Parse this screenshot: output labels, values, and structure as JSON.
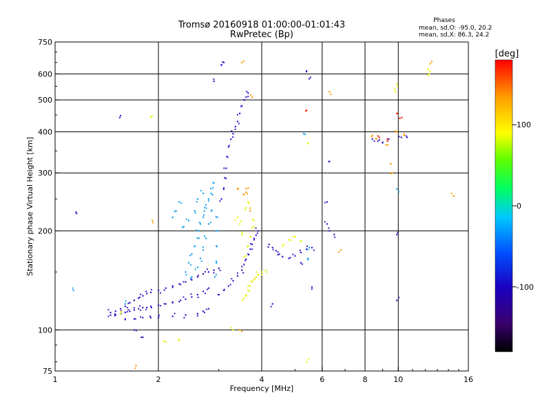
{
  "chart_data": {
    "type": "scatter",
    "title": "Tromsø 20160918 01:00:00-01:01:43",
    "subtitle": "RwPretec (Bp)",
    "xlabel": "Frequency [MHz]",
    "ylabel": "Stationary phase Virtual Height [km]",
    "x_scale": "log",
    "y_scale": "log",
    "xlim": [
      1,
      16
    ],
    "ylim": [
      75,
      750
    ],
    "x_ticks": [
      1,
      2,
      4,
      6,
      8,
      10,
      16
    ],
    "y_ticks": [
      75,
      100,
      200,
      300,
      400,
      500,
      600,
      750
    ],
    "grid": true,
    "stats": {
      "heading": "Phases",
      "line1": "mean, sd,O: -95.0, 20.2",
      "line2": "mean, sd,X:  86.3, 24.2"
    },
    "colorbar": {
      "label": "[deg]",
      "range": [
        -180,
        180
      ],
      "ticks": [
        {
          "value": 100,
          "label": "100"
        },
        {
          "value": 0,
          "label": "0"
        },
        {
          "value": -100,
          "label": "-100"
        }
      ]
    },
    "series": [
      {
        "points": [
          [
            1.45,
            113
          ],
          [
            1.5,
            114
          ],
          [
            1.55,
            116
          ],
          [
            1.6,
            118
          ],
          [
            1.65,
            121
          ],
          [
            1.7,
            123
          ],
          [
            1.75,
            125
          ],
          [
            1.8,
            127
          ],
          [
            1.85,
            129
          ],
          [
            1.9,
            130
          ],
          [
            2.0,
            132
          ],
          [
            2.1,
            134
          ],
          [
            2.2,
            136
          ],
          [
            2.3,
            138
          ],
          [
            2.4,
            140
          ],
          [
            2.5,
            142
          ],
          [
            2.6,
            145
          ],
          [
            2.7,
            148
          ],
          [
            2.8,
            150
          ],
          [
            2.9,
            152
          ],
          [
            3.0,
            154
          ],
          [
            1.45,
            111
          ],
          [
            1.5,
            111
          ],
          [
            1.55,
            112
          ],
          [
            1.6,
            113
          ],
          [
            1.65,
            114
          ],
          [
            1.7,
            115
          ],
          [
            1.75,
            116
          ],
          [
            1.8,
            117
          ],
          [
            1.85,
            117
          ],
          [
            1.9,
            118
          ],
          [
            2.0,
            119
          ],
          [
            2.1,
            120
          ],
          [
            2.2,
            121
          ],
          [
            2.3,
            122
          ],
          [
            2.4,
            124
          ],
          [
            2.5,
            126
          ],
          [
            2.6,
            128
          ],
          [
            2.7,
            131
          ],
          [
            2.8,
            134
          ],
          [
            1.6,
            108
          ],
          [
            1.7,
            108
          ],
          [
            1.8,
            109
          ],
          [
            1.9,
            109
          ],
          [
            2.0,
            109
          ],
          [
            2.2,
            110
          ],
          [
            2.4,
            111
          ],
          [
            2.6,
            112
          ],
          [
            2.7,
            114
          ],
          [
            2.8,
            116
          ],
          [
            3.0,
            128
          ],
          [
            3.1,
            132
          ],
          [
            3.2,
            136
          ],
          [
            3.3,
            141
          ],
          [
            3.4,
            146
          ],
          [
            3.5,
            152
          ],
          [
            3.55,
            158
          ],
          [
            3.6,
            164
          ],
          [
            3.65,
            170
          ],
          [
            3.7,
            176
          ],
          [
            3.75,
            182
          ],
          [
            3.8,
            188
          ],
          [
            3.85,
            194
          ],
          [
            3.9,
            200
          ],
          [
            4.2,
            182
          ],
          [
            4.3,
            178
          ],
          [
            4.4,
            174
          ],
          [
            4.5,
            170
          ],
          [
            4.6,
            167
          ],
          [
            4.8,
            165
          ],
          [
            5.0,
            168
          ],
          [
            5.2,
            172
          ],
          [
            5.4,
            176
          ],
          [
            5.6,
            178
          ],
          [
            3.05,
            250
          ],
          [
            3.1,
            270
          ],
          [
            3.12,
            290
          ],
          [
            3.15,
            310
          ],
          [
            3.18,
            335
          ],
          [
            3.2,
            360
          ],
          [
            3.25,
            380
          ],
          [
            3.3,
            395
          ],
          [
            3.35,
            415
          ],
          [
            3.4,
            430
          ],
          [
            3.45,
            455
          ],
          [
            3.5,
            480
          ],
          [
            3.55,
            500
          ],
          [
            3.6,
            510
          ],
          [
            3.65,
            525
          ],
          [
            2.9,
            570
          ],
          [
            3.05,
            640
          ],
          [
            3.1,
            650
          ],
          [
            1.55,
            448
          ],
          [
            1.15,
            228
          ],
          [
            1.7,
            100
          ],
          [
            1.8,
            95
          ],
          [
            5.4,
            610
          ],
          [
            5.5,
            580
          ],
          [
            6.2,
            210
          ],
          [
            6.3,
            200
          ],
          [
            6.5,
            195
          ],
          [
            8.4,
            380
          ],
          [
            8.8,
            378
          ],
          [
            9.0,
            372
          ],
          [
            9.3,
            380
          ],
          [
            10.2,
            385
          ],
          [
            10.6,
            385
          ],
          [
            9.9,
            195
          ],
          [
            9.9,
            123
          ],
          [
            4.3,
            120
          ],
          [
            5.6,
            135
          ],
          [
            5.2,
            160
          ],
          [
            6.2,
            245
          ],
          [
            6.3,
            325
          ]
        ]
      },
      {
        "points": [
          [
            2.4,
            150
          ],
          [
            2.45,
            160
          ],
          [
            2.5,
            170
          ],
          [
            2.55,
            180
          ],
          [
            2.6,
            190
          ],
          [
            2.62,
            200
          ],
          [
            2.65,
            210
          ],
          [
            2.7,
            220
          ],
          [
            2.72,
            230
          ],
          [
            2.75,
            240
          ],
          [
            2.8,
            250
          ],
          [
            2.85,
            260
          ],
          [
            2.88,
            270
          ],
          [
            2.9,
            280
          ],
          [
            2.85,
            230
          ],
          [
            2.8,
            210
          ],
          [
            2.75,
            190
          ],
          [
            2.7,
            175
          ],
          [
            2.65,
            165
          ],
          [
            2.6,
            155
          ],
          [
            2.5,
            145
          ],
          [
            2.95,
            180
          ],
          [
            2.95,
            200
          ],
          [
            2.97,
            220
          ],
          [
            2.95,
            160
          ],
          [
            2.92,
            145
          ],
          [
            2.7,
            260
          ],
          [
            2.6,
            250
          ],
          [
            2.55,
            230
          ],
          [
            2.3,
            245
          ],
          [
            2.25,
            230
          ],
          [
            2.2,
            220
          ],
          [
            2.35,
            205
          ],
          [
            2.45,
            215
          ],
          [
            1.13,
            132
          ],
          [
            1.6,
            120
          ],
          [
            9.9,
            268
          ],
          [
            5.5,
            178
          ],
          [
            5.45,
            165
          ],
          [
            5.3,
            395
          ]
        ]
      },
      {
        "points": [
          [
            3.55,
            125
          ],
          [
            3.6,
            128
          ],
          [
            3.65,
            132
          ],
          [
            3.7,
            136
          ],
          [
            3.75,
            140
          ],
          [
            3.8,
            142
          ],
          [
            3.85,
            145
          ],
          [
            3.9,
            147
          ],
          [
            4.0,
            150
          ],
          [
            4.1,
            152
          ],
          [
            3.6,
            168
          ],
          [
            3.65,
            180
          ],
          [
            3.7,
            192
          ],
          [
            3.75,
            205
          ],
          [
            3.8,
            215
          ],
          [
            3.5,
            195
          ],
          [
            3.45,
            210
          ],
          [
            3.4,
            220
          ],
          [
            3.6,
            235
          ],
          [
            3.65,
            245
          ],
          [
            4.8,
            188
          ],
          [
            5.0,
            192
          ],
          [
            5.2,
            186
          ],
          [
            4.6,
            180
          ],
          [
            3.3,
            100
          ],
          [
            9.8,
            530
          ],
          [
            9.9,
            560
          ],
          [
            12.2,
            620
          ],
          [
            12.3,
            600
          ],
          [
            5.45,
            370
          ],
          [
            1.9,
            445
          ],
          [
            2.1,
            92
          ],
          [
            2.3,
            93
          ],
          [
            1.55,
            112
          ],
          [
            5.4,
            80
          ]
        ]
      },
      {
        "points": [
          [
            3.6,
            262
          ],
          [
            3.65,
            270
          ],
          [
            3.55,
            258
          ],
          [
            3.4,
            268
          ],
          [
            3.5,
            650
          ],
          [
            3.75,
            510
          ],
          [
            3.7,
            230
          ],
          [
            6.3,
            530
          ],
          [
            6.8,
            175
          ],
          [
            8.4,
            390
          ],
          [
            8.6,
            382
          ],
          [
            9.2,
            365
          ],
          [
            9.9,
            400
          ],
          [
            10.4,
            390
          ],
          [
            12.4,
            645
          ],
          [
            14.5,
            255
          ],
          [
            1.72,
            78
          ],
          [
            1.92,
            215
          ],
          [
            3.45,
            100
          ],
          [
            9.6,
            300
          ],
          [
            9.5,
            320
          ]
        ]
      },
      {
        "points": [
          [
            5.4,
            465
          ],
          [
            9.9,
            455
          ],
          [
            10.1,
            440
          ],
          [
            8.8,
            385
          ],
          [
            9.3,
            375
          ]
        ]
      }
    ]
  },
  "colors": {
    "series_palette": [
      "#3a18c8",
      "#1aa0f0",
      "#e8f000",
      "#ff9a00",
      "#ff2000"
    ],
    "grid": "#000000",
    "axis": "#000000",
    "colorbar_gradient": [
      "#000000",
      "#3a0070",
      "#1a00c0",
      "#0050ff",
      "#00c8ff",
      "#00ff60",
      "#60ff00",
      "#ffff00",
      "#ffa000",
      "#ff0000"
    ]
  }
}
